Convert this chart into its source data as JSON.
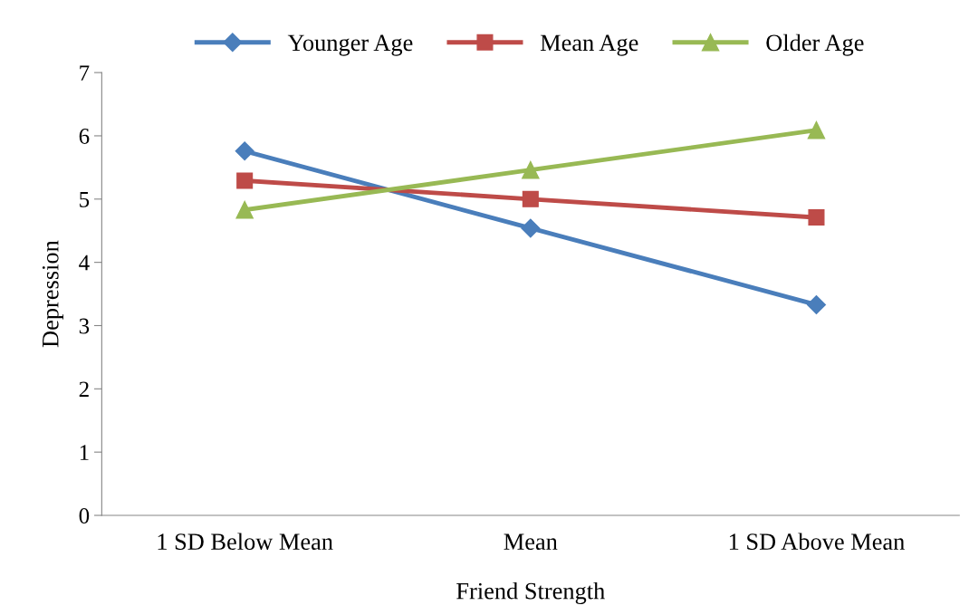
{
  "chart_data": {
    "type": "line",
    "xlabel": "Friend Strength",
    "ylabel": "Depression",
    "categories": [
      "1 SD Below Mean",
      "Mean",
      "1 SD Above Mean"
    ],
    "series": [
      {
        "name": "Younger Age",
        "color": "#4a7ebb",
        "values": [
          5.76,
          4.54,
          3.33
        ],
        "marker": "diamond"
      },
      {
        "name": "Mean Age",
        "color": "#be4b48",
        "values": [
          5.29,
          5.0,
          4.71
        ],
        "marker": "square"
      },
      {
        "name": "Older Age",
        "color": "#98b954",
        "values": [
          4.83,
          5.46,
          6.09
        ],
        "marker": "triangle"
      }
    ],
    "ylim": [
      0,
      7
    ],
    "yticks": [
      0,
      1,
      2,
      3,
      4,
      5,
      6,
      7
    ],
    "grid": false,
    "legend": "top",
    "line_style": "solid"
  }
}
